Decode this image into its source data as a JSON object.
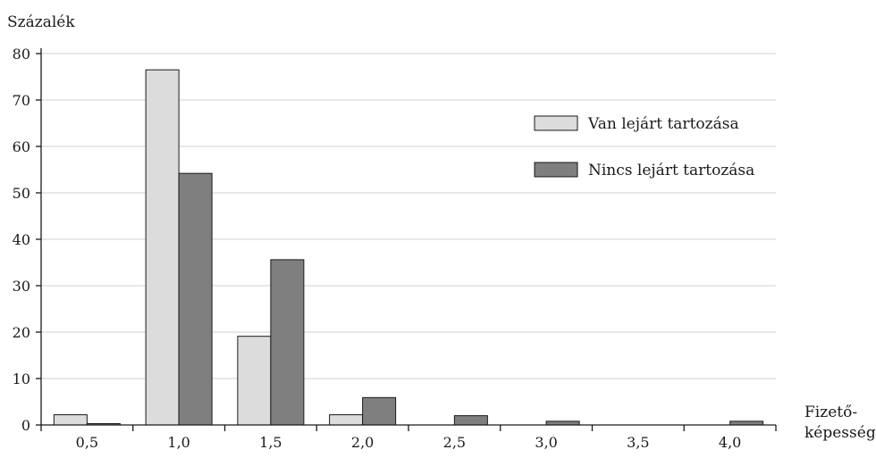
{
  "chart_data": {
    "type": "bar",
    "ylabel": "Százalék",
    "xlabel_line1": "Fizető-",
    "xlabel_line2": "képesség",
    "categories": [
      "0,5",
      "1,0",
      "1,5",
      "2,0",
      "2,5",
      "3,0",
      "3,5",
      "4,0"
    ],
    "series": [
      {
        "name": "Van lejárt tartozása",
        "color": "#dcdcdc",
        "values": [
          2.2,
          76.5,
          19.1,
          2.2,
          0,
          0,
          0,
          0
        ]
      },
      {
        "name": "Nincs lejárt tartozása",
        "color": "#7f7f7f",
        "values": [
          0.3,
          54.2,
          35.6,
          5.9,
          2.0,
          0.8,
          0,
          0.8
        ]
      }
    ],
    "ylim": [
      0,
      80
    ],
    "yticks": [
      0,
      10,
      20,
      30,
      40,
      50,
      60,
      70,
      80
    ],
    "grid": true,
    "legend_position": "top-right"
  }
}
